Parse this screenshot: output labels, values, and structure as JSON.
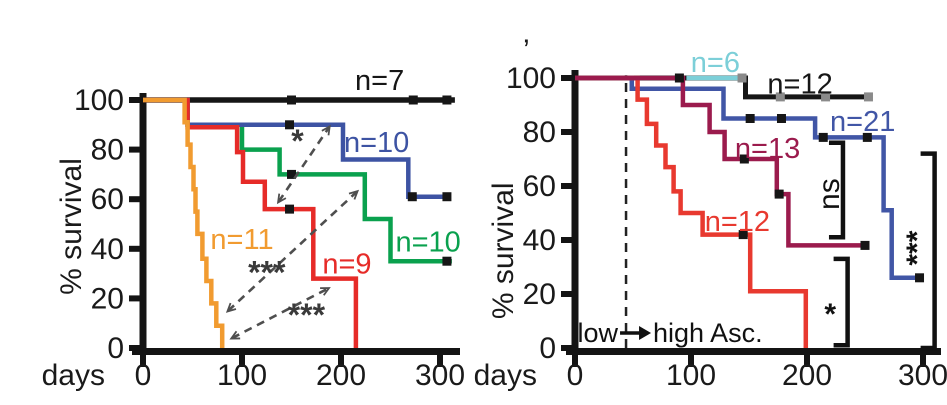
{
  "figure": {
    "background": "#ffffff",
    "axis_color": "#141414",
    "arrow_color": "#4f4f4f"
  },
  "chart_data": [
    {
      "id": "left",
      "type": "line",
      "subtype": "kaplan-meier-step",
      "xlabel": "days",
      "ylabel": "% survival",
      "xticks": [
        0,
        100,
        200,
        300
      ],
      "yticks": [
        0,
        20,
        40,
        60,
        80,
        100
      ],
      "xlim": [
        0,
        320
      ],
      "ylim": [
        0,
        100
      ],
      "series": [
        {
          "id": "black-n7",
          "label": "n=7",
          "color": "#161616",
          "label_color": "#161616",
          "label_pos": [
            239,
            108
          ],
          "width": 5.5,
          "points": [
            [
              0,
              100
            ],
            [
              315,
              100
            ]
          ],
          "censors": [
            [
              150,
              100
            ],
            [
              273,
              100
            ],
            [
              307,
              100
            ]
          ],
          "censor_color": "#161616"
        },
        {
          "id": "green-n10",
          "label": "n=10",
          "color": "#0aa14e",
          "label_color": "#0aa14e",
          "label_pos": [
            288,
            43
          ],
          "width": 4.5,
          "points": [
            [
              0,
              100
            ],
            [
              45,
              100
            ],
            [
              45,
              90
            ],
            [
              100,
              90
            ],
            [
              100,
              80
            ],
            [
              138,
              80
            ],
            [
              138,
              70
            ],
            [
              224,
              70
            ],
            [
              224,
              52
            ],
            [
              250,
              52
            ],
            [
              250,
              35
            ],
            [
              312,
              35
            ]
          ],
          "censors": [
            [
              150,
              70
            ],
            [
              307,
              35
            ]
          ],
          "censor_color": "#161616"
        },
        {
          "id": "blue-n10",
          "label": "n=10",
          "color": "#3d53a3",
          "label_color": "#3d53a3",
          "label_pos": [
            236,
            83
          ],
          "width": 4.5,
          "points": [
            [
              0,
              100
            ],
            [
              45,
              100
            ],
            [
              45,
              90
            ],
            [
              202,
              90
            ],
            [
              202,
              76
            ],
            [
              268,
              76
            ],
            [
              268,
              61
            ],
            [
              310,
              61
            ]
          ],
          "censors": [
            [
              148,
              90
            ],
            [
              272,
              61
            ],
            [
              307,
              61
            ]
          ],
          "censor_color": "#161616"
        },
        {
          "id": "red-n9",
          "label": "n=9",
          "color": "#e62b28",
          "label_color": "#e62b28",
          "label_pos": [
            206,
            34
          ],
          "width": 4.5,
          "points": [
            [
              0,
              100
            ],
            [
              45,
              100
            ],
            [
              45,
              89
            ],
            [
              95,
              89
            ],
            [
              95,
              79
            ],
            [
              101,
              79
            ],
            [
              101,
              67
            ],
            [
              123,
              67
            ],
            [
              123,
              56
            ],
            [
              172,
              56
            ],
            [
              172,
              28
            ],
            [
              215,
              28
            ],
            [
              215,
              0
            ]
          ],
          "censors": [
            [
              148,
              56
            ]
          ],
          "censor_color": "#161616"
        },
        {
          "id": "orange-n11",
          "label": "n=11",
          "color": "#f19b30",
          "label_color": "#f19b30",
          "label_pos": [
            100,
            44
          ],
          "width": 4.5,
          "points": [
            [
              0,
              100
            ],
            [
              42,
              100
            ],
            [
              42,
              91
            ],
            [
              45,
              91
            ],
            [
              45,
              82
            ],
            [
              48,
              82
            ],
            [
              48,
              73
            ],
            [
              51,
              73
            ],
            [
              51,
              64
            ],
            [
              53,
              64
            ],
            [
              53,
              55
            ],
            [
              55,
              55
            ],
            [
              55,
              46
            ],
            [
              60,
              46
            ],
            [
              60,
              36
            ],
            [
              64,
              36
            ],
            [
              64,
              27
            ],
            [
              69,
              27
            ],
            [
              69,
              18
            ],
            [
              74,
              18
            ],
            [
              74,
              9
            ],
            [
              80,
              9
            ],
            [
              80,
              0
            ]
          ],
          "censors": [],
          "censor_color": "#161616"
        }
      ],
      "arrows": [
        {
          "from": [
            137,
            59
          ],
          "to": [
            188,
            89
          ],
          "label": "*",
          "label_pos": [
            156,
            83
          ]
        },
        {
          "from": [
            86,
            15
          ],
          "to": [
            216,
            63
          ],
          "label": "***",
          "label_pos": [
            125,
            30
          ]
        },
        {
          "from": [
            90,
            4
          ],
          "to": [
            187,
            24
          ],
          "label": "***",
          "label_pos": [
            165,
            13
          ]
        }
      ]
    },
    {
      "id": "right",
      "type": "line",
      "subtype": "kaplan-meier-step",
      "xlabel": "days",
      "ylabel": "% survival",
      "xticks": [
        0,
        100,
        200,
        300
      ],
      "yticks": [
        0,
        20,
        40,
        60,
        80,
        100
      ],
      "xlim": [
        0,
        320
      ],
      "ylim": [
        0,
        100
      ],
      "corner_mark": "’",
      "vline": {
        "day": 44
      },
      "transition_label": {
        "pre": "low",
        "post": "high Asc."
      },
      "series": [
        {
          "id": "black-n12",
          "label": "n=12",
          "color": "#161616",
          "label_color": "#161616",
          "label_pos": [
            194,
            98
          ],
          "width": 5,
          "points": [
            [
              0,
              100
            ],
            [
              147,
              100
            ],
            [
              147,
              93
            ],
            [
              254,
              93
            ]
          ],
          "censors": [
            [
              177,
              93
            ],
            [
              216,
              93
            ],
            [
              253,
              93
            ]
          ],
          "censor_color": "#8a8a8a"
        },
        {
          "id": "blue-n21",
          "label": "n=21",
          "color": "#4156a6",
          "label_color": "#4156a6",
          "label_pos": [
            248,
            84
          ],
          "width": 4.5,
          "points": [
            [
              0,
              100
            ],
            [
              49,
              100
            ],
            [
              49,
              96
            ],
            [
              128,
              96
            ],
            [
              128,
              85
            ],
            [
              207,
              85
            ],
            [
              207,
              78
            ],
            [
              266,
              78
            ],
            [
              266,
              51
            ],
            [
              273,
              51
            ],
            [
              273,
              26
            ],
            [
              300,
              26
            ]
          ],
          "censors": [
            [
              151,
              85
            ],
            [
              178,
              85
            ],
            [
              214,
              78
            ],
            [
              252,
              78
            ],
            [
              297,
              26
            ]
          ],
          "censor_color": "#161616"
        },
        {
          "id": "red-n12",
          "label": "n=12",
          "color": "#e8392f",
          "label_color": "#e8392f",
          "label_pos": [
            140,
            47
          ],
          "width": 4.5,
          "points": [
            [
              0,
              100
            ],
            [
              54,
              100
            ],
            [
              54,
              92
            ],
            [
              62,
              92
            ],
            [
              62,
              83
            ],
            [
              70,
              83
            ],
            [
              70,
              75
            ],
            [
              78,
              75
            ],
            [
              78,
              67
            ],
            [
              85,
              67
            ],
            [
              85,
              58
            ],
            [
              91,
              58
            ],
            [
              91,
              50
            ],
            [
              110,
              50
            ],
            [
              110,
              42
            ],
            [
              151,
              42
            ],
            [
              151,
              21
            ],
            [
              199,
              21
            ],
            [
              199,
              0
            ]
          ],
          "censors": [
            [
              145,
              42
            ]
          ],
          "censor_color": "#161616"
        },
        {
          "id": "maroon-n13",
          "label": "n=13",
          "color": "#9b1b4d",
          "label_color": "#9b1b4d",
          "label_pos": [
            166,
            74
          ],
          "width": 4.5,
          "points": [
            [
              0,
              100
            ],
            [
              93,
              100
            ],
            [
              93,
              90
            ],
            [
              116,
              90
            ],
            [
              116,
              80
            ],
            [
              129,
              80
            ],
            [
              129,
              70
            ],
            [
              174,
              70
            ],
            [
              174,
              57
            ],
            [
              184,
              57
            ],
            [
              184,
              38
            ],
            [
              250,
              38
            ]
          ],
          "censors": [
            [
              90,
              100
            ],
            [
              146,
              70
            ],
            [
              176,
              57
            ],
            [
              250,
              38
            ]
          ],
          "censor_color": "#161616"
        },
        {
          "id": "cyan-n6",
          "label": "n=6",
          "color": "#7ccfd8",
          "label_color": "#7ccfd8",
          "label_pos": [
            121,
            106
          ],
          "width": 4.5,
          "points": [
            [
              96,
              100
            ],
            [
              145,
              100
            ]
          ],
          "censors": [
            [
              144,
              100
            ]
          ],
          "censor_color": "#8a8a8a"
        }
      ],
      "brackets": [
        {
          "day": 231,
          "top": 76,
          "bottom": 41,
          "label": "ns",
          "label_day": 219,
          "label_pct": 57,
          "rotated": true,
          "label_size": 30
        },
        {
          "day": 235,
          "top": 33,
          "bottom": 1,
          "label": "*",
          "label_day": 220,
          "label_pct": 14,
          "rotated": false,
          "label_size": 40
        },
        {
          "day": 310,
          "top": 72,
          "bottom": 0,
          "label": "***",
          "label_day": 295,
          "label_pct": 37,
          "rotated": true,
          "label_size": 30
        }
      ]
    }
  ]
}
